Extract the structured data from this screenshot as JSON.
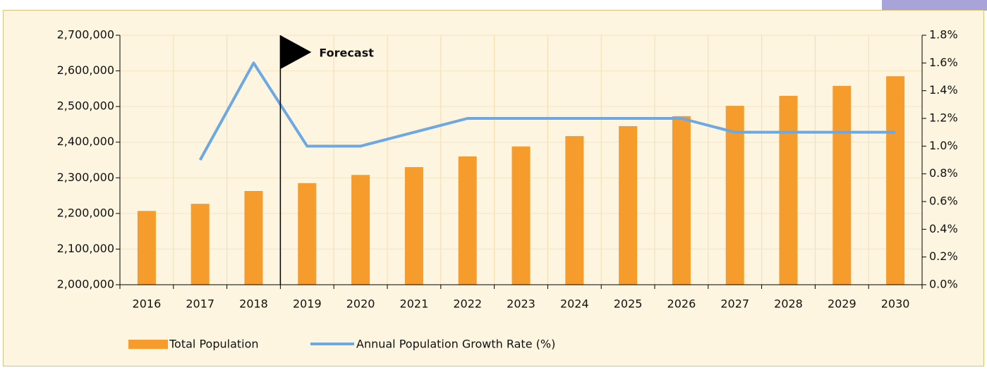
{
  "chart_data": {
    "type": "bar_line",
    "categories": [
      "2016",
      "2017",
      "2018",
      "2019",
      "2020",
      "2021",
      "2022",
      "2023",
      "2024",
      "2025",
      "2026",
      "2027",
      "2028",
      "2029",
      "2030"
    ],
    "series": [
      {
        "name": "Total Population",
        "color": "#f59c2d",
        "type": "bar",
        "values": [
          2207000,
          2227000,
          2263000,
          2285000,
          2308000,
          2330000,
          2360000,
          2388000,
          2417000,
          2445000,
          2473000,
          2502000,
          2530000,
          2558000,
          2585000
        ]
      },
      {
        "name": "Annual Population Growth Rate (%)",
        "color": "#6ea8e2",
        "type": "line",
        "axis": "y2",
        "values": [
          null,
          0.9,
          1.6,
          1.0,
          1.0,
          1.1,
          1.2,
          1.2,
          1.2,
          1.2,
          1.2,
          1.1,
          1.1,
          1.1,
          1.1
        ]
      }
    ],
    "ylim": [
      2000000,
      2700000
    ],
    "yticks": [
      {
        "value": 2000000,
        "label": "2,000,000"
      },
      {
        "value": 2100000,
        "label": "2,100,000"
      },
      {
        "value": 2200000,
        "label": "2,200,000"
      },
      {
        "value": 2300000,
        "label": "2,300,000"
      },
      {
        "value": 2400000,
        "label": "2,400,000"
      },
      {
        "value": 2500000,
        "label": "2,500,000"
      },
      {
        "value": 2600000,
        "label": "2,600,000"
      },
      {
        "value": 2700000,
        "label": "2,700,000"
      }
    ],
    "y2lim": [
      0,
      1.8
    ],
    "y2ticks": [
      {
        "value": 0,
        "label": "0.0%"
      },
      {
        "value": 0.2,
        "label": "0.2%"
      },
      {
        "value": 0.4,
        "label": "0.4%"
      },
      {
        "value": 0.6,
        "label": "0.6%"
      },
      {
        "value": 0.8,
        "label": "0.8%"
      },
      {
        "value": 1.0,
        "label": "1.0%"
      },
      {
        "value": 1.2,
        "label": "1.2%"
      },
      {
        "value": 1.4,
        "label": "1.4%"
      },
      {
        "value": 1.6,
        "label": "1.6%"
      },
      {
        "value": 1.8,
        "label": "1.8%"
      }
    ],
    "annotation": "Forecast",
    "grid": true
  }
}
